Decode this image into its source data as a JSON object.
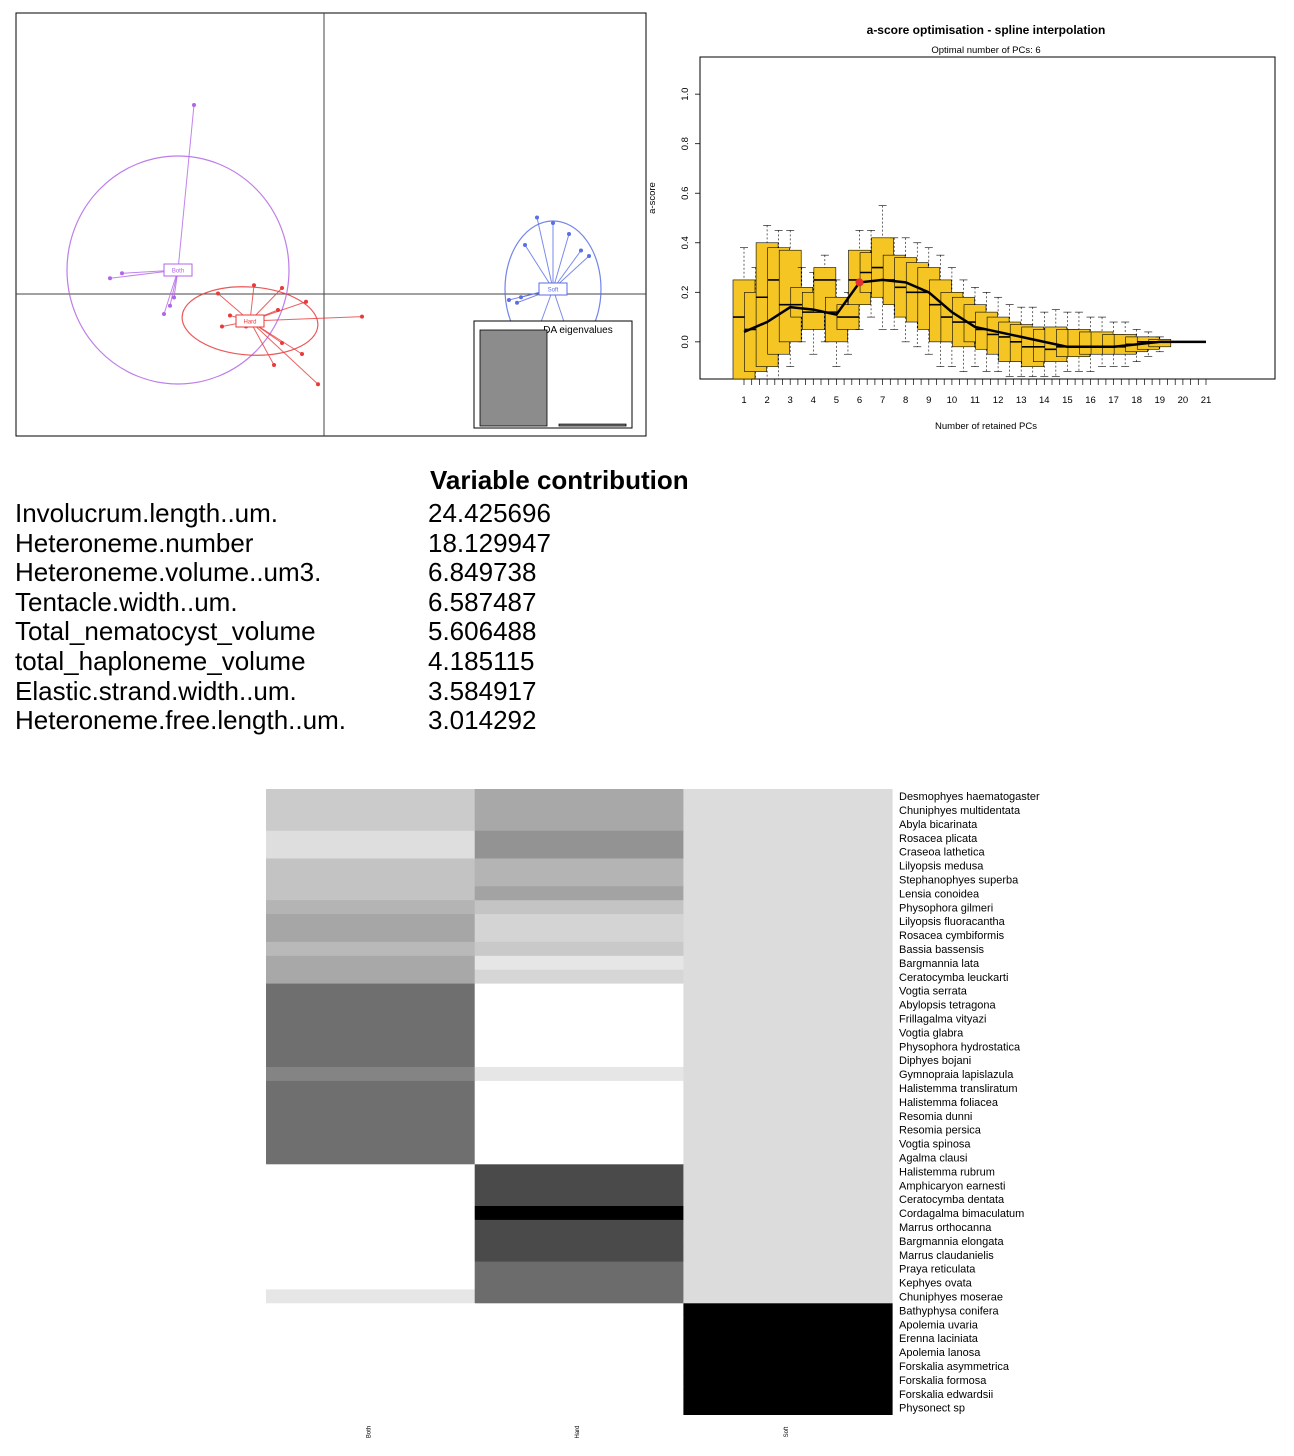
{
  "chart_data": [
    {
      "type": "scatter",
      "panel": "discriminant-analysis-scatter",
      "title": "",
      "xlabel": "",
      "ylabel": "",
      "groups": [
        {
          "name": "Both",
          "color": "#b266e6",
          "centroid": [
            0.0,
            0.0
          ],
          "points": [
            [
              -1.7,
              -0.15
            ],
            [
              -1.4,
              -0.06
            ],
            [
              0.4,
              3.0
            ],
            [
              -0.1,
              -0.5
            ],
            [
              -0.2,
              -0.65
            ],
            [
              -0.35,
              -0.8
            ]
          ]
        },
        {
          "name": "Hard",
          "color": "#e83a3a",
          "centroid": [
            1.1,
            -0.9
          ],
          "points": [
            [
              0.3,
              -0.4
            ],
            [
              1.2,
              -0.25
            ],
            [
              1.9,
              -0.3
            ],
            [
              2.5,
              -0.55
            ],
            [
              3.9,
              -0.82
            ],
            [
              0.4,
              -1.0
            ],
            [
              0.6,
              -0.8
            ],
            [
              1.0,
              -1.0
            ],
            [
              2.4,
              -1.5
            ],
            [
              2.8,
              -2.05
            ],
            [
              1.7,
              -1.7
            ],
            [
              1.9,
              -1.3
            ],
            [
              1.8,
              -0.7
            ]
          ]
        },
        {
          "name": "Soft",
          "color": "#5a6ee6",
          "centroid": [
            7.7,
            -0.3
          ],
          "points": [
            [
              7.3,
              1.0
            ],
            [
              7.7,
              0.9
            ],
            [
              8.1,
              0.7
            ],
            [
              8.4,
              0.4
            ],
            [
              8.6,
              0.3
            ],
            [
              6.8,
              -0.55
            ],
            [
              6.9,
              -0.45
            ],
            [
              7.1,
              -1.5
            ],
            [
              8.3,
              -1.6
            ],
            [
              6.6,
              -0.5
            ],
            [
              7.0,
              0.5
            ]
          ]
        }
      ],
      "inset": {
        "title": "DA eigenvalues",
        "values": [
          1.0,
          0.02
        ]
      }
    },
    {
      "type": "box",
      "panel": "a-score-optimisation",
      "title": "a-score optimisation - spline interpolation",
      "subtitle": "Optimal number of PCs: 6",
      "xlabel": "Number of retained PCs",
      "ylabel": "a-score",
      "x_ticks": [
        1,
        2,
        3,
        4,
        5,
        6,
        7,
        8,
        9,
        10,
        11,
        12,
        13,
        14,
        15,
        16,
        17,
        18,
        19,
        20,
        21
      ],
      "y_ticks": [
        "0.0",
        "0.2",
        "0.4",
        "0.6",
        "0.8",
        "1.0"
      ],
      "ylim": [
        -0.15,
        1.15
      ],
      "optimal": 6,
      "box_color": "#f5c623",
      "boxes": [
        {
          "x": 1,
          "q1": -0.15,
          "med": 0.1,
          "q3": 0.25,
          "lo": -0.15,
          "hi": 0.38
        },
        {
          "x": 1.5,
          "q1": -0.12,
          "med": 0.05,
          "q3": 0.2,
          "lo": -0.15,
          "hi": 0.3
        },
        {
          "x": 2,
          "q1": -0.1,
          "med": 0.18,
          "q3": 0.4,
          "lo": -0.15,
          "hi": 0.47
        },
        {
          "x": 2.5,
          "q1": -0.05,
          "med": 0.25,
          "q3": 0.38,
          "lo": -0.15,
          "hi": 0.45
        },
        {
          "x": 3,
          "q1": 0.0,
          "med": 0.15,
          "q3": 0.37,
          "lo": -0.1,
          "hi": 0.45
        },
        {
          "x": 3.5,
          "q1": 0.1,
          "med": 0.15,
          "q3": 0.22,
          "lo": 0.0,
          "hi": 0.3
        },
        {
          "x": 4,
          "q1": 0.05,
          "med": 0.12,
          "q3": 0.2,
          "lo": -0.05,
          "hi": 0.28
        },
        {
          "x": 4.5,
          "q1": 0.12,
          "med": 0.25,
          "q3": 0.3,
          "lo": 0.0,
          "hi": 0.35
        },
        {
          "x": 5,
          "q1": 0.0,
          "med": 0.12,
          "q3": 0.18,
          "lo": -0.1,
          "hi": 0.25
        },
        {
          "x": 5.5,
          "q1": 0.05,
          "med": 0.1,
          "q3": 0.15,
          "lo": -0.05,
          "hi": 0.2
        },
        {
          "x": 6,
          "q1": 0.15,
          "med": 0.25,
          "q3": 0.37,
          "lo": 0.05,
          "hi": 0.45
        },
        {
          "x": 6.5,
          "q1": 0.2,
          "med": 0.28,
          "q3": 0.36,
          "lo": 0.1,
          "hi": 0.45
        },
        {
          "x": 7,
          "q1": 0.18,
          "med": 0.3,
          "q3": 0.42,
          "lo": 0.05,
          "hi": 0.55
        },
        {
          "x": 7.5,
          "q1": 0.15,
          "med": 0.25,
          "q3": 0.35,
          "lo": 0.05,
          "hi": 0.42
        },
        {
          "x": 8,
          "q1": 0.1,
          "med": 0.22,
          "q3": 0.34,
          "lo": 0.0,
          "hi": 0.42
        },
        {
          "x": 8.5,
          "q1": 0.08,
          "med": 0.2,
          "q3": 0.32,
          "lo": -0.02,
          "hi": 0.4
        },
        {
          "x": 9,
          "q1": 0.05,
          "med": 0.2,
          "q3": 0.3,
          "lo": -0.05,
          "hi": 0.38
        },
        {
          "x": 9.5,
          "q1": 0.0,
          "med": 0.15,
          "q3": 0.25,
          "lo": -0.1,
          "hi": 0.35
        },
        {
          "x": 10,
          "q1": 0.0,
          "med": 0.1,
          "q3": 0.2,
          "lo": -0.1,
          "hi": 0.3
        },
        {
          "x": 10.5,
          "q1": -0.02,
          "med": 0.08,
          "q3": 0.18,
          "lo": -0.12,
          "hi": 0.25
        },
        {
          "x": 11,
          "q1": 0.0,
          "med": 0.08,
          "q3": 0.15,
          "lo": -0.1,
          "hi": 0.22
        },
        {
          "x": 11.5,
          "q1": -0.03,
          "med": 0.05,
          "q3": 0.12,
          "lo": -0.12,
          "hi": 0.2
        },
        {
          "x": 12,
          "q1": -0.05,
          "med": 0.03,
          "q3": 0.1,
          "lo": -0.12,
          "hi": 0.18
        },
        {
          "x": 12.5,
          "q1": -0.08,
          "med": 0.02,
          "q3": 0.08,
          "lo": -0.14,
          "hi": 0.15
        },
        {
          "x": 13,
          "q1": -0.08,
          "med": 0.0,
          "q3": 0.07,
          "lo": -0.14,
          "hi": 0.14
        },
        {
          "x": 13.5,
          "q1": -0.1,
          "med": -0.02,
          "q3": 0.06,
          "lo": -0.14,
          "hi": 0.14
        },
        {
          "x": 14,
          "q1": -0.08,
          "med": -0.02,
          "q3": 0.05,
          "lo": -0.14,
          "hi": 0.12
        },
        {
          "x": 14.5,
          "q1": -0.08,
          "med": -0.03,
          "q3": 0.06,
          "lo": -0.14,
          "hi": 0.13
        },
        {
          "x": 15,
          "q1": -0.06,
          "med": -0.02,
          "q3": 0.05,
          "lo": -0.12,
          "hi": 0.12
        },
        {
          "x": 15.5,
          "q1": -0.06,
          "med": -0.02,
          "q3": 0.05,
          "lo": -0.12,
          "hi": 0.12
        },
        {
          "x": 16,
          "q1": -0.05,
          "med": -0.02,
          "q3": 0.04,
          "lo": -0.12,
          "hi": 0.1
        },
        {
          "x": 16.5,
          "q1": -0.05,
          "med": -0.02,
          "q3": 0.04,
          "lo": -0.1,
          "hi": 0.1
        },
        {
          "x": 17,
          "q1": -0.05,
          "med": -0.02,
          "q3": 0.03,
          "lo": -0.1,
          "hi": 0.08
        },
        {
          "x": 17.5,
          "q1": -0.05,
          "med": -0.02,
          "q3": 0.03,
          "lo": -0.1,
          "hi": 0.08
        },
        {
          "x": 18,
          "q1": -0.04,
          "med": -0.01,
          "q3": 0.02,
          "lo": -0.08,
          "hi": 0.05
        },
        {
          "x": 18.5,
          "q1": -0.03,
          "med": 0.0,
          "q3": 0.02,
          "lo": -0.06,
          "hi": 0.04
        },
        {
          "x": 19,
          "q1": -0.02,
          "med": 0.0,
          "q3": 0.01,
          "lo": -0.04,
          "hi": 0.02
        }
      ],
      "mean_curve": [
        [
          1,
          0.04
        ],
        [
          2,
          0.08
        ],
        [
          3,
          0.14
        ],
        [
          4,
          0.13
        ],
        [
          5,
          0.11
        ],
        [
          6,
          0.24
        ],
        [
          7,
          0.25
        ],
        [
          8,
          0.24
        ],
        [
          9,
          0.2
        ],
        [
          10,
          0.12
        ],
        [
          11,
          0.06
        ],
        [
          12,
          0.04
        ],
        [
          13,
          0.02
        ],
        [
          14,
          0.0
        ],
        [
          15,
          -0.02
        ],
        [
          16,
          -0.02
        ],
        [
          17,
          -0.02
        ],
        [
          18,
          -0.01
        ],
        [
          19,
          0.0
        ],
        [
          20,
          0.0
        ],
        [
          21,
          0.0
        ]
      ]
    },
    {
      "type": "heatmap",
      "panel": "membership-heatmap",
      "columns": [
        "Both",
        "Hard",
        "Soft"
      ],
      "rows": [
        "Desmophyes haematogaster",
        "Chuniphyes multidentata",
        "Abyla bicarinata",
        "Rosacea plicata",
        "Craseoa lathetica",
        "Lilyopsis medusa",
        "Stephanophyes superba",
        "Lensia conoidea",
        "Physophora gilmeri",
        "Lilyopsis fluoracantha",
        "Rosacea cymbiformis",
        "Bassia bassensis",
        "Bargmannia lata",
        "Ceratocymba leuckarti",
        "Vogtia serrata",
        "Abylopsis tetragona",
        "Frillagalma vityazi",
        "Vogtia glabra",
        "Physophora hydrostatica",
        "Diphyes bojani",
        "Gymnopraia lapislazula",
        "Halistemma transliratum",
        "Halistemma foliacea",
        "Resomia dunni",
        "Resomia persica",
        "Vogtia spinosa",
        "Agalma clausi",
        "Halistemma rubrum",
        "Amphicaryon earnesti",
        "Ceratocymba dentata",
        "Cordagalma bimaculatum",
        "Marrus orthocanna",
        "Bargmannia elongata",
        "Marrus claudanielis",
        "Praya reticulata",
        "Kephyes ovata",
        "Chuniphyes moserae",
        "Bathyphysa conifera",
        "Apolemia uvaria",
        "Erenna laciniata",
        "Apolemia lanosa",
        "Forskalia asymmetrica",
        "Forskalia formosa",
        "Forskalia edwardsii",
        "Physonect sp"
      ],
      "values": [
        [
          "#cbcbcb",
          "#a8a8a8",
          "#dcdcdc"
        ],
        [
          "#cbcbcb",
          "#a8a8a8",
          "#dcdcdc"
        ],
        [
          "#cbcbcb",
          "#a8a8a8",
          "#dcdcdc"
        ],
        [
          "#dedede",
          "#939393",
          "#dcdcdc"
        ],
        [
          "#dedede",
          "#939393",
          "#dcdcdc"
        ],
        [
          "#c3c3c3",
          "#b4b4b4",
          "#dcdcdc"
        ],
        [
          "#c3c3c3",
          "#b4b4b4",
          "#dcdcdc"
        ],
        [
          "#c3c3c3",
          "#a3a3a3",
          "#dcdcdc"
        ],
        [
          "#b4b4b4",
          "#c4c4c4",
          "#dcdcdc"
        ],
        [
          "#a6a6a6",
          "#d4d4d4",
          "#dcdcdc"
        ],
        [
          "#a6a6a6",
          "#d4d4d4",
          "#dcdcdc"
        ],
        [
          "#b9b9b9",
          "#c9c9c9",
          "#dcdcdc"
        ],
        [
          "#a8a8a8",
          "#e6e6e6",
          "#dcdcdc"
        ],
        [
          "#a8a8a8",
          "#d6d6d6",
          "#dcdcdc"
        ],
        [
          "#6f6f6f",
          "#ffffff",
          "#dcdcdc"
        ],
        [
          "#6f6f6f",
          "#ffffff",
          "#dcdcdc"
        ],
        [
          "#6f6f6f",
          "#ffffff",
          "#dcdcdc"
        ],
        [
          "#6f6f6f",
          "#ffffff",
          "#dcdcdc"
        ],
        [
          "#6f6f6f",
          "#ffffff",
          "#dcdcdc"
        ],
        [
          "#6f6f6f",
          "#ffffff",
          "#dcdcdc"
        ],
        [
          "#848484",
          "#e6e6e6",
          "#dcdcdc"
        ],
        [
          "#6f6f6f",
          "#ffffff",
          "#dcdcdc"
        ],
        [
          "#6f6f6f",
          "#ffffff",
          "#dcdcdc"
        ],
        [
          "#6f6f6f",
          "#ffffff",
          "#dcdcdc"
        ],
        [
          "#6f6f6f",
          "#ffffff",
          "#dcdcdc"
        ],
        [
          "#6f6f6f",
          "#ffffff",
          "#dcdcdc"
        ],
        [
          "#6f6f6f",
          "#ffffff",
          "#dcdcdc"
        ],
        [
          "#ffffff",
          "#4a4a4a",
          "#dcdcdc"
        ],
        [
          "#ffffff",
          "#4a4a4a",
          "#dcdcdc"
        ],
        [
          "#ffffff",
          "#4a4a4a",
          "#dcdcdc"
        ],
        [
          "#ffffff",
          "#000000",
          "#dcdcdc"
        ],
        [
          "#ffffff",
          "#4a4a4a",
          "#dcdcdc"
        ],
        [
          "#ffffff",
          "#4a4a4a",
          "#dcdcdc"
        ],
        [
          "#ffffff",
          "#4a4a4a",
          "#dcdcdc"
        ],
        [
          "#ffffff",
          "#6c6c6c",
          "#dcdcdc"
        ],
        [
          "#ffffff",
          "#6c6c6c",
          "#dcdcdc"
        ],
        [
          "#e6e6e6",
          "#6c6c6c",
          "#dcdcdc"
        ],
        [
          "#ffffff",
          "#ffffff",
          "#000000"
        ],
        [
          "#ffffff",
          "#ffffff",
          "#000000"
        ],
        [
          "#ffffff",
          "#ffffff",
          "#000000"
        ],
        [
          "#ffffff",
          "#ffffff",
          "#000000"
        ],
        [
          "#ffffff",
          "#ffffff",
          "#000000"
        ],
        [
          "#ffffff",
          "#ffffff",
          "#000000"
        ],
        [
          "#ffffff",
          "#ffffff",
          "#000000"
        ],
        [
          "#ffffff",
          "#ffffff",
          "#000000"
        ]
      ]
    }
  ],
  "contribution": {
    "title": "Variable contribution",
    "rows": [
      {
        "name": "Involucrum.length..um.",
        "value": "24.425696"
      },
      {
        "name": "Heteroneme.number",
        "value": "18.129947"
      },
      {
        "name": "Heteroneme.volume..um3.",
        "value": "6.849738"
      },
      {
        "name": "Tentacle.width..um.",
        "value": "6.587487"
      },
      {
        "name": "Total_nematocyst_volume",
        "value": "5.606488"
      },
      {
        "name": "total_haploneme_volume",
        "value": "4.185115"
      },
      {
        "name": "Elastic.strand.width..um.",
        "value": "3.584917"
      },
      {
        "name": "Heteroneme.free.length..um.",
        "value": "3.014292"
      }
    ]
  }
}
